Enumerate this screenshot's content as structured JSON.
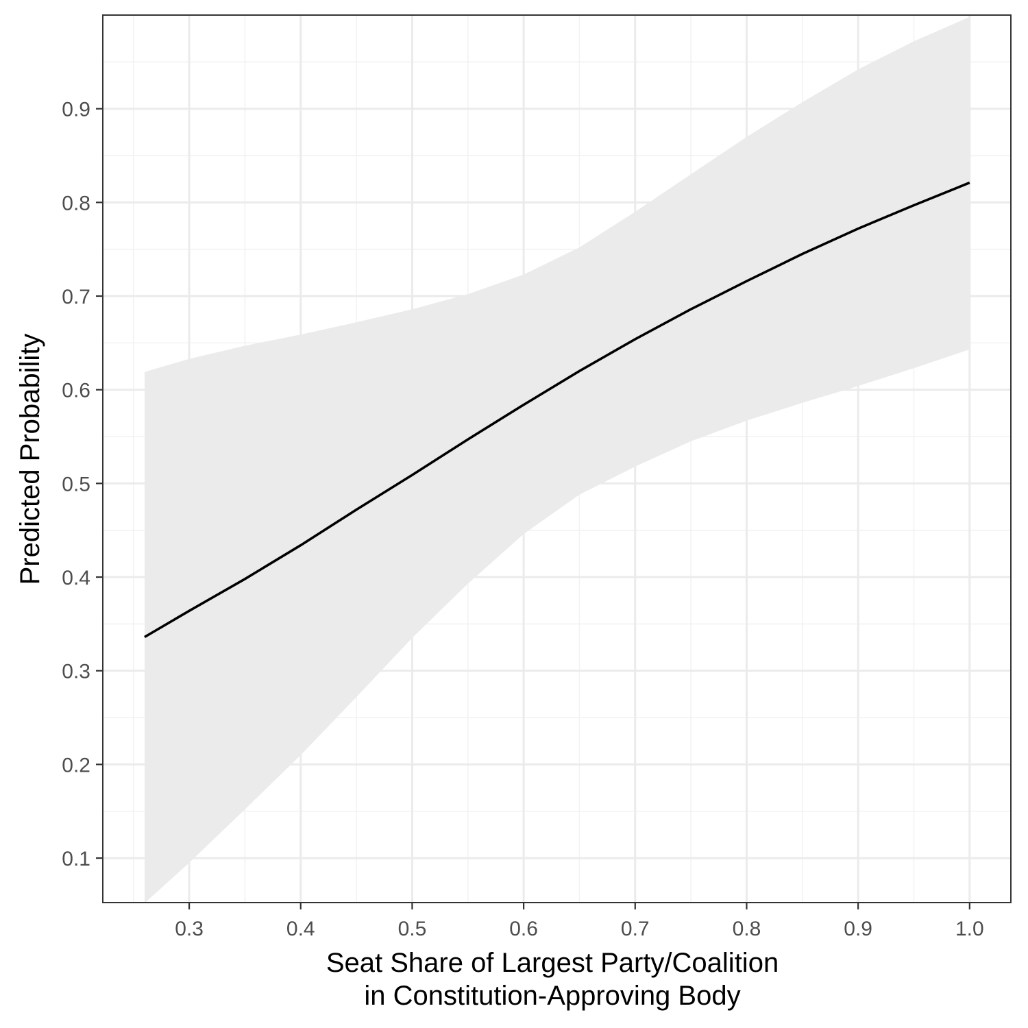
{
  "chart_data": {
    "type": "line",
    "xlabel": [
      "Seat Share of Largest Party/Coalition",
      "in Constitution-Approving Body"
    ],
    "ylabel": "Predicted Probability",
    "xlim": [
      0.2225,
      1.037
    ],
    "ylim": [
      0.0525,
      1.0
    ],
    "x_ticks": [
      0.3,
      0.4,
      0.5,
      0.6,
      0.7,
      0.8,
      0.9,
      1.0
    ],
    "x_tick_labels": [
      "0.3",
      "0.4",
      "0.5",
      "0.6",
      "0.7",
      "0.8",
      "0.9",
      "1.0"
    ],
    "y_ticks": [
      0.1,
      0.2,
      0.3,
      0.4,
      0.5,
      0.6,
      0.7,
      0.8,
      0.9
    ],
    "y_tick_labels": [
      "0.1",
      "0.2",
      "0.3",
      "0.4",
      "0.5",
      "0.6",
      "0.7",
      "0.8",
      "0.9"
    ],
    "grid": true,
    "colors": {
      "line": "#000000",
      "ribbon": "#ebebeb",
      "panel_border": "#333333"
    },
    "series": [
      {
        "x": [
          0.26,
          0.3,
          0.35,
          0.4,
          0.45,
          0.5,
          0.55,
          0.6,
          0.65,
          0.7,
          0.75,
          0.8,
          0.85,
          0.9,
          0.95,
          1.0
        ],
        "y": [
          0.336,
          0.364,
          0.398,
          0.434,
          0.472,
          0.509,
          0.547,
          0.584,
          0.62,
          0.654,
          0.686,
          0.716,
          0.745,
          0.772,
          0.797,
          0.821
        ],
        "lower": [
          0.052,
          0.095,
          0.152,
          0.21,
          0.272,
          0.335,
          0.393,
          0.446,
          0.488,
          0.518,
          0.545,
          0.567,
          0.586,
          0.604,
          0.623,
          0.643
        ],
        "upper": [
          0.619,
          0.633,
          0.647,
          0.659,
          0.672,
          0.686,
          0.702,
          0.723,
          0.752,
          0.79,
          0.83,
          0.87,
          0.907,
          0.942,
          0.972,
          0.998
        ]
      }
    ]
  }
}
